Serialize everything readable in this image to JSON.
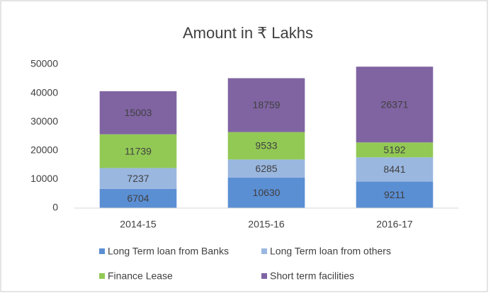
{
  "chart_data": {
    "type": "stacked_bar",
    "title": "Amount in ₹ Lakhs",
    "categories": [
      "2014-15",
      "2015-16",
      "2016-17"
    ],
    "series": [
      {
        "name": "Long Term loan from Banks",
        "color": "#5b8fd4",
        "values": [
          6704,
          10630,
          9211
        ]
      },
      {
        "name": "Long Term loan from others",
        "color": "#9ab7e0",
        "values": [
          7237,
          6285,
          8441
        ]
      },
      {
        "name": "Finance Lease",
        "color": "#92c955",
        "values": [
          11739,
          9533,
          5192
        ]
      },
      {
        "name": "Short term facilities",
        "color": "#8064a2",
        "values": [
          15003,
          18759,
          26371
        ]
      }
    ],
    "ylim": [
      0,
      50000
    ],
    "yticks": [
      0,
      10000,
      20000,
      30000,
      40000,
      50000
    ],
    "grid": false,
    "legend": "bottom"
  }
}
